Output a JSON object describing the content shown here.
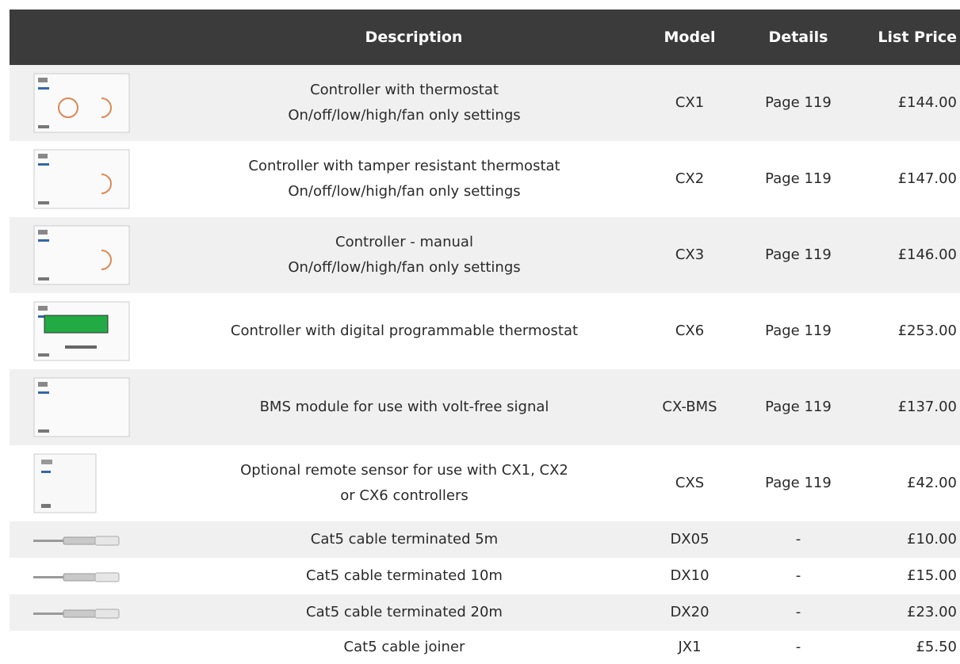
{
  "table": {
    "header": [
      "Description",
      "Model",
      "Details",
      "List Price"
    ],
    "rows": [
      {
        "description": [
          "Controller with thermostat",
          "On/off/low/high/fan only settings"
        ],
        "model": "CX1",
        "details": "Page 119",
        "price": "£144.00"
      },
      {
        "description": [
          "Controller with tamper resistant thermostat",
          "On/off/low/high/fan only settings"
        ],
        "model": "CX2",
        "details": "Page 119",
        "price": "£147.00"
      },
      {
        "description": [
          "Controller - manual",
          "On/off/low/high/fan only settings"
        ],
        "model": "CX3",
        "details": "Page 119",
        "price": "£146.00"
      },
      {
        "description": [
          "Controller with digital programmable thermostat"
        ],
        "model": "CX6",
        "details": "Page 119",
        "price": "£253.00"
      },
      {
        "description": [
          "BMS module for use with volt-free signal"
        ],
        "model": "CX-BMS",
        "details": "Page 119",
        "price": "£137.00"
      },
      {
        "description": [
          "Optional remote sensor for use with CX1, CX2",
          "or CX6 controllers"
        ],
        "model": "CXS",
        "details": "Page 119",
        "price": "£42.00"
      },
      {
        "description": [
          "Cat5 cable terminated 5m"
        ],
        "model": "DX05",
        "details": "-",
        "price": "£10.00"
      },
      {
        "description": [
          "Cat5 cable terminated 10m"
        ],
        "model": "DX10",
        "details": "-",
        "price": "£15.00"
      },
      {
        "description": [
          "Cat5 cable terminated 20m"
        ],
        "model": "DX20",
        "details": "-",
        "price": "£23.00"
      },
      {
        "description": [
          "Cat5 cable joiner"
        ],
        "model": "JX1",
        "details": "-",
        "price": "£5.50"
      }
    ]
  }
}
